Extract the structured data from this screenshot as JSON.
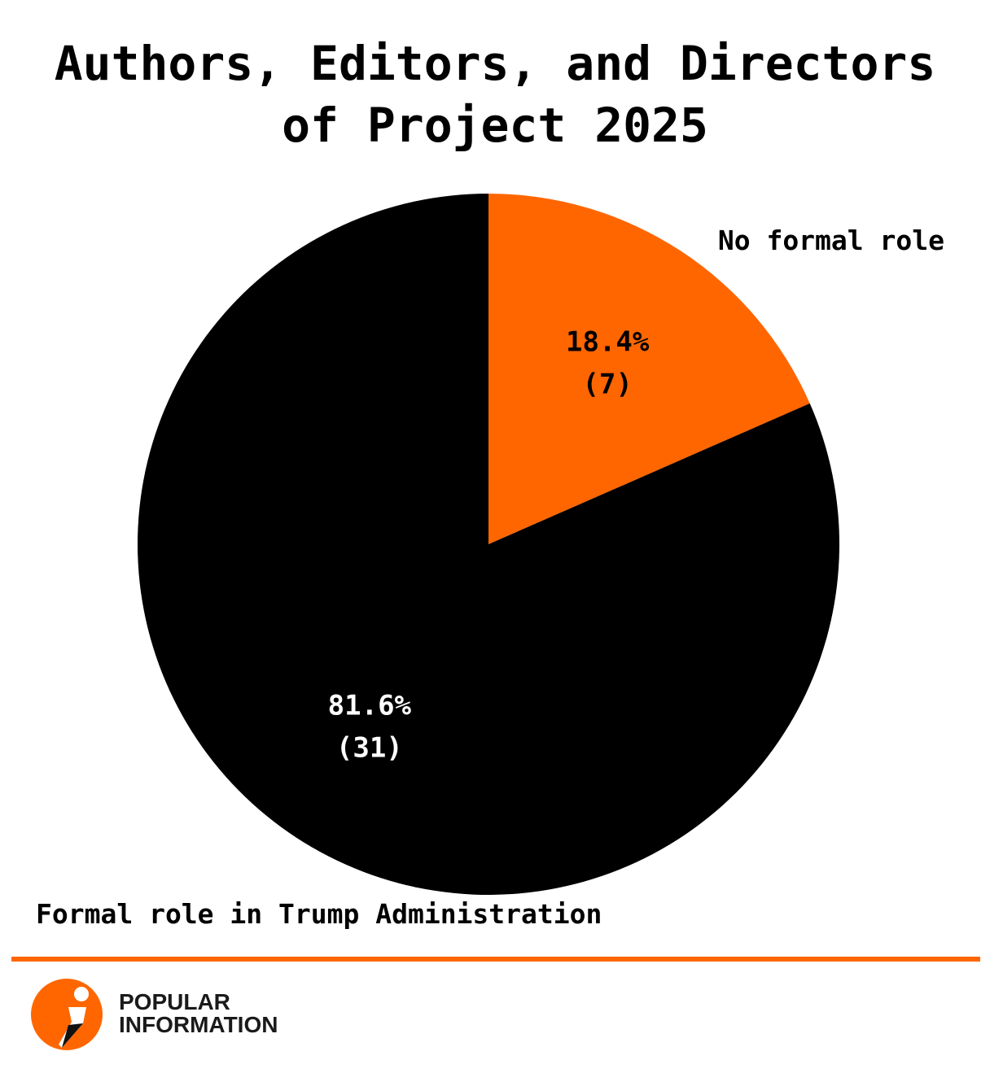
{
  "chart_data": {
    "type": "pie",
    "title_lines": [
      "Authors, Editors, and Directors",
      "of Project 2025"
    ],
    "slices": [
      {
        "label": "No formal role",
        "percent_label": "18.4%",
        "count_label": "(7)",
        "value": 7,
        "color": "#ff6600",
        "text_color": "#000000"
      },
      {
        "label": "Formal role in Trump Administration",
        "percent_label": "81.6%",
        "count_label": "(31)",
        "value": 31,
        "color": "#000000",
        "text_color": "#ffffff"
      }
    ]
  },
  "branding": {
    "line1": "POPULAR",
    "line2": "INFORMATION",
    "accent_color": "#ff6600"
  }
}
